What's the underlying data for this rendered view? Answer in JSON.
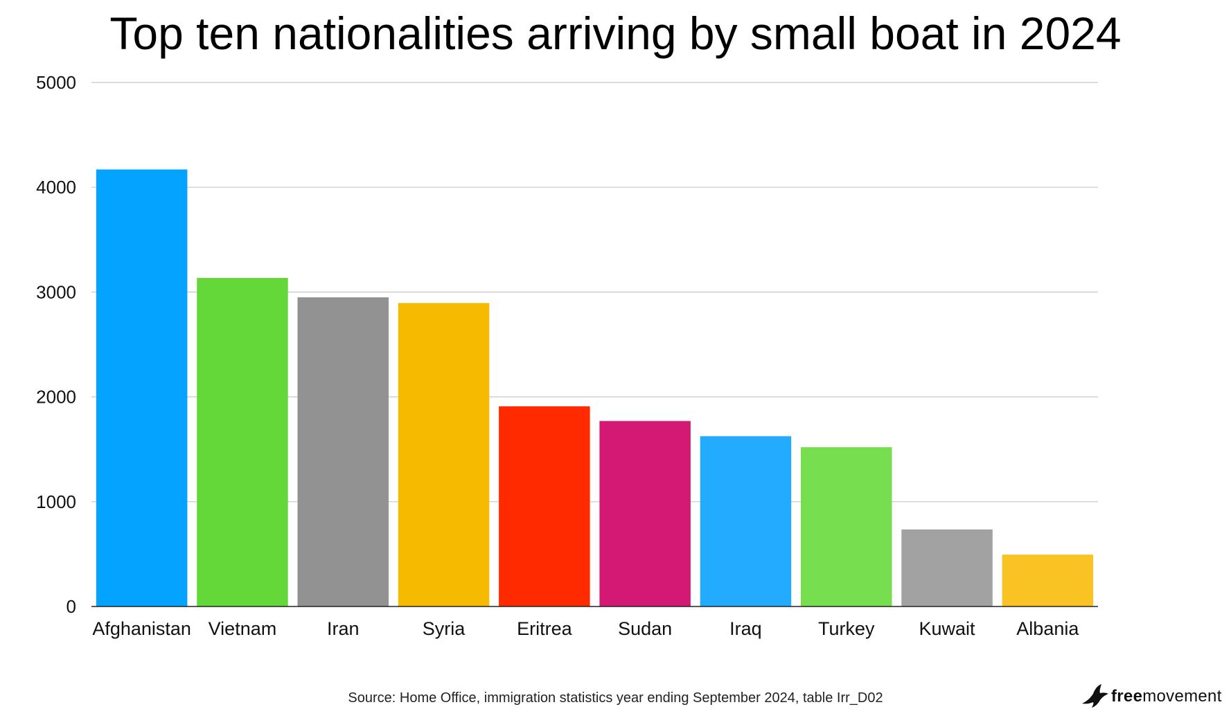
{
  "chart_data": {
    "type": "bar",
    "title": "Top ten nationalities arriving by small boat in 2024",
    "categories": [
      "Afghanistan",
      "Vietnam",
      "Iran",
      "Syria",
      "Eritrea",
      "Sudan",
      "Iraq",
      "Turkey",
      "Kuwait",
      "Albania"
    ],
    "values": [
      4170,
      3135,
      2950,
      2895,
      1910,
      1770,
      1625,
      1520,
      735,
      495
    ],
    "colors": [
      "#04A3FF",
      "#64D839",
      "#929292",
      "#F6BA00",
      "#FF2A00",
      "#D41975",
      "#23ACFF",
      "#77DE50",
      "#A2A2A2",
      "#F9C423"
    ],
    "ylim": [
      0,
      5000
    ],
    "yticks": [
      "0",
      "1000",
      "2000",
      "3000",
      "4000",
      "5000"
    ],
    "grid": true,
    "xlabel": "",
    "ylabel": "",
    "source": "Source: Home Office, immigration statistics year ending September 2024, table Irr_D02"
  },
  "logo": {
    "bold": "free",
    "regular": "movement",
    "icon": "bird-icon"
  }
}
